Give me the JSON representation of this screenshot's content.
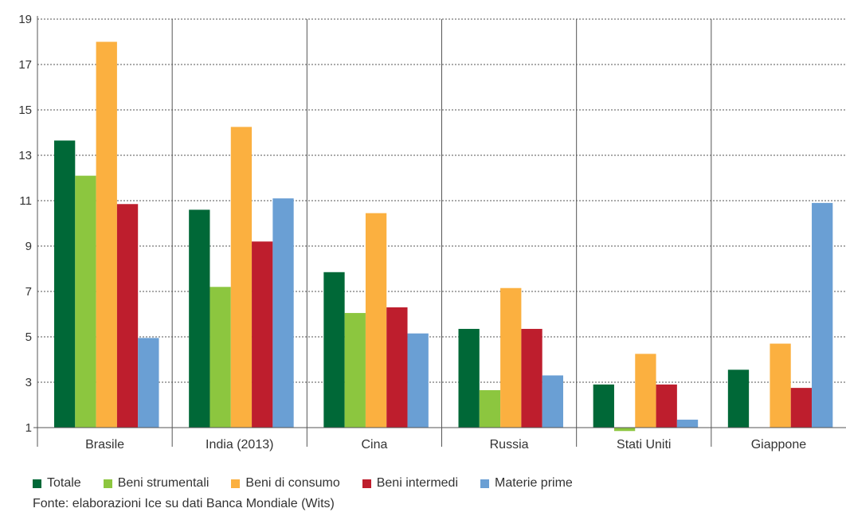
{
  "chart_data": {
    "type": "bar",
    "categories": [
      "Brasile",
      "India (2013)",
      "Cina",
      "Russia",
      "Stati Uniti",
      "Giappone"
    ],
    "series": [
      {
        "name": "Totale",
        "color": "#006837",
        "values": [
          13.65,
          10.6,
          7.85,
          5.35,
          2.9,
          3.55
        ]
      },
      {
        "name": "Beni strumentali",
        "color": "#8cc63f",
        "values": [
          12.1,
          7.2,
          6.05,
          2.65,
          0.85,
          null
        ]
      },
      {
        "name": "Beni di consumo",
        "color": "#fbb040",
        "values": [
          18.0,
          14.25,
          10.45,
          7.15,
          4.25,
          4.7
        ]
      },
      {
        "name": "Beni intermedi",
        "color": "#be1e2d",
        "values": [
          10.85,
          9.2,
          6.3,
          5.35,
          2.9,
          2.75
        ]
      },
      {
        "name": "Materie prime",
        "color": "#6a9fd4",
        "values": [
          4.95,
          11.1,
          5.15,
          3.3,
          1.35,
          10.9
        ]
      }
    ],
    "yticks": [
      1,
      3,
      5,
      7,
      9,
      11,
      13,
      15,
      17,
      19
    ],
    "ylim": [
      1,
      19
    ],
    "baseline": 1,
    "grid": "horizontal-dotted",
    "legend_position": "bottom"
  },
  "source": "Fonte: elaborazioni Ice su dati Banca Mondiale (Wits)"
}
